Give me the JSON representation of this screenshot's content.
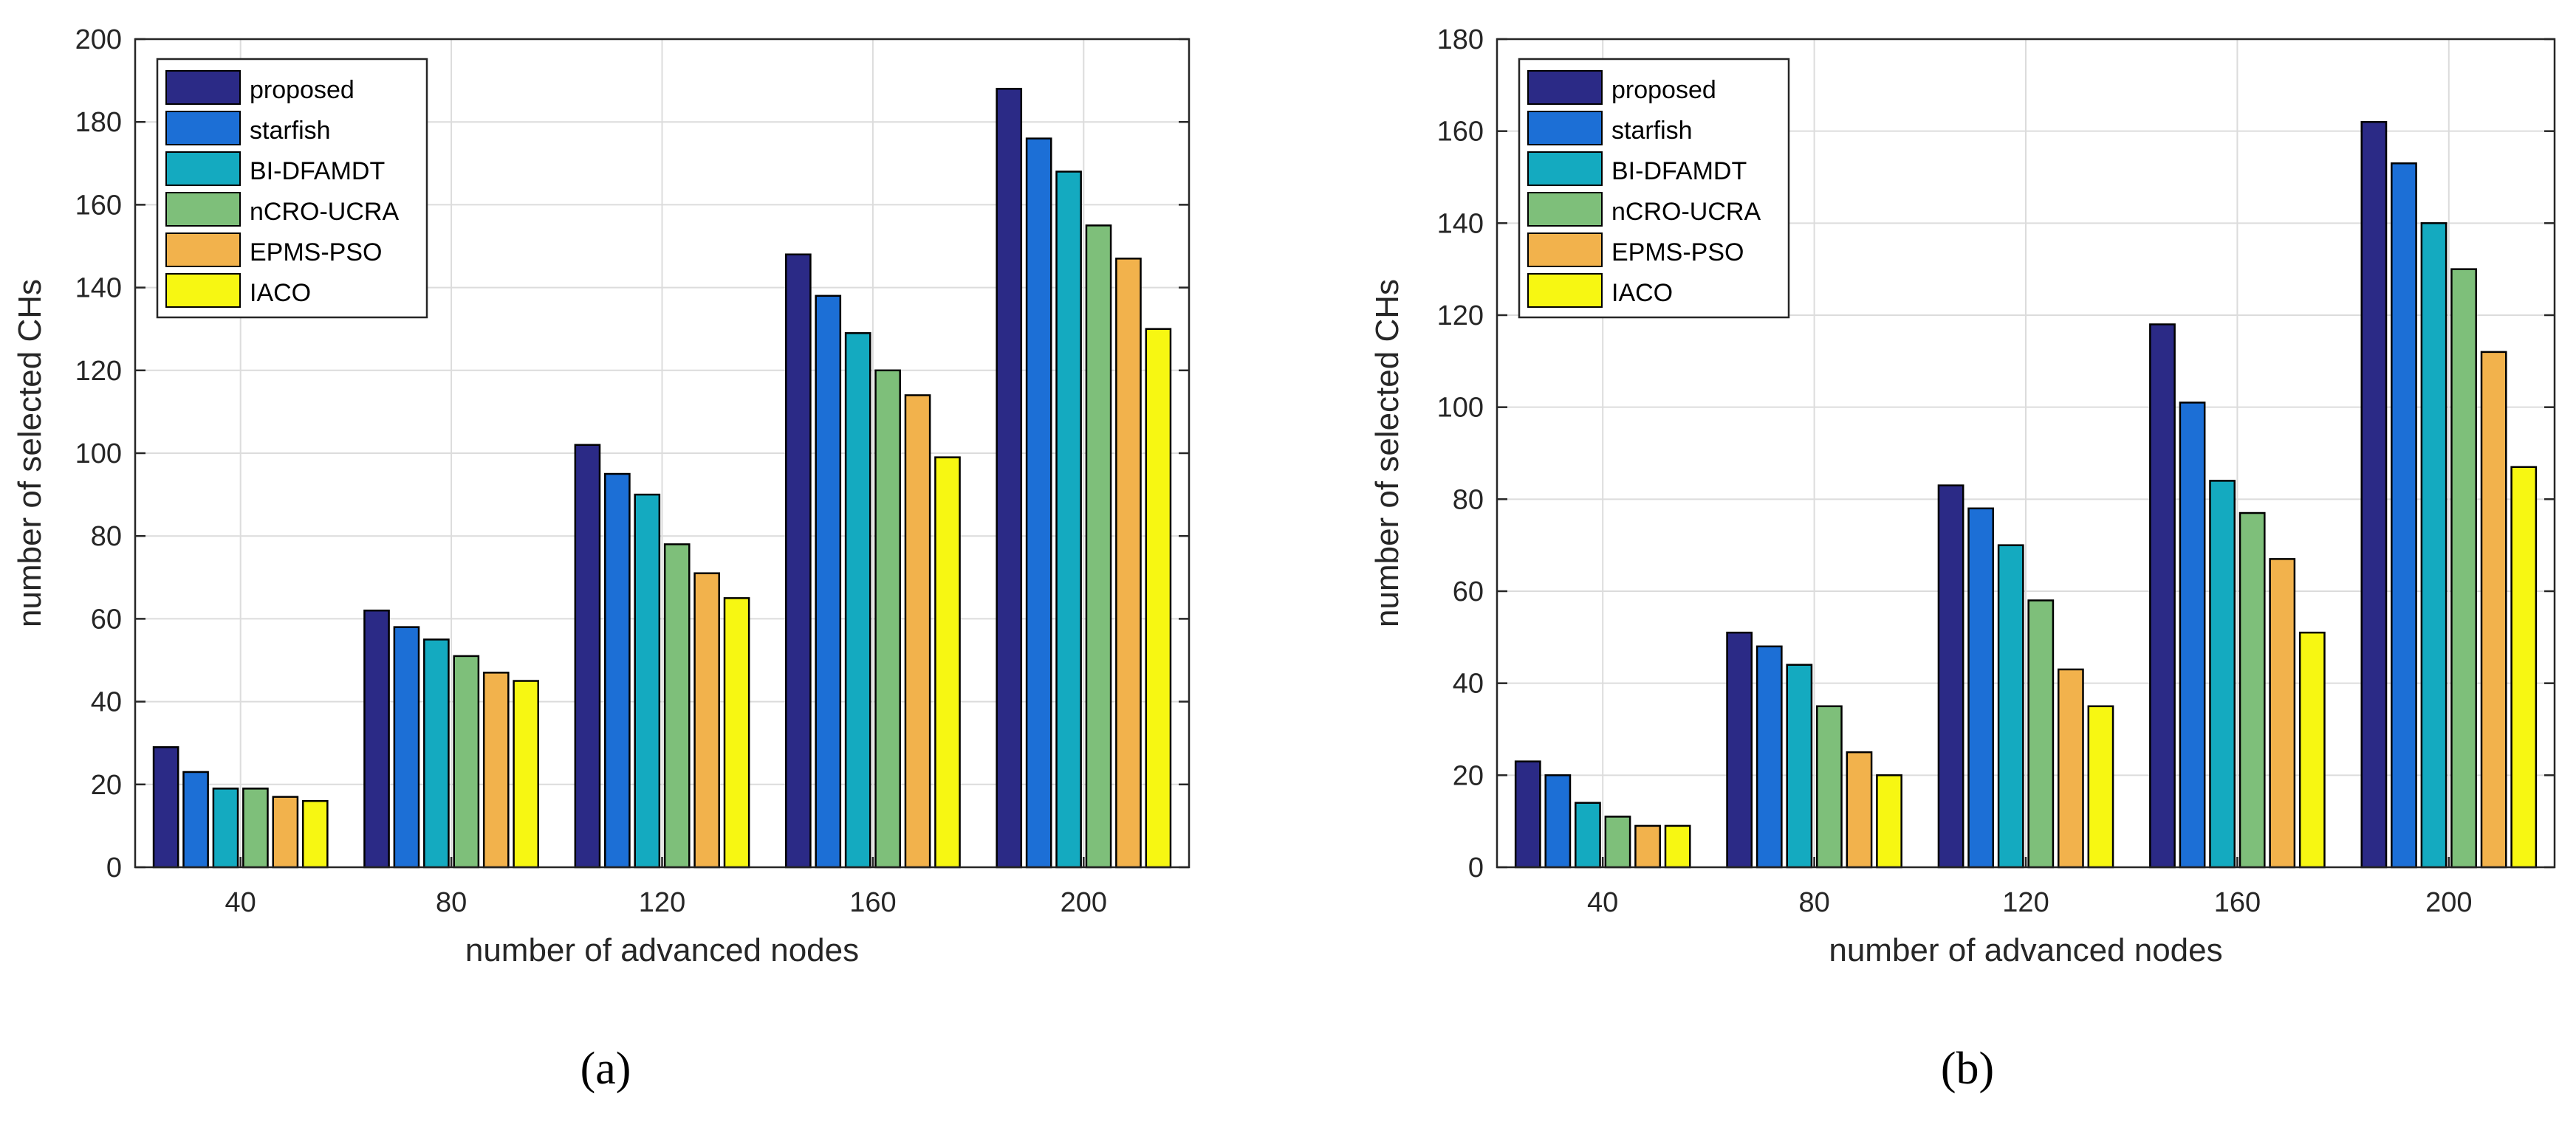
{
  "colors": {
    "proposed": "#2b2a86",
    "starfish": "#1c6fd6",
    "BI-DFAMDT": "#14aac0",
    "nCRO-UCRA": "#7ebf7a",
    "EPMS-PSO": "#f2b24c",
    "IACO": "#f7f712"
  },
  "chart_data": [
    {
      "type": "bar",
      "panel": "(a)",
      "caption": "(a)",
      "categories": [
        "40",
        "80",
        "120",
        "160",
        "200"
      ],
      "series": [
        {
          "name": "proposed",
          "values": [
            29,
            62,
            102,
            148,
            188
          ]
        },
        {
          "name": "starfish",
          "values": [
            23,
            58,
            95,
            138,
            176
          ]
        },
        {
          "name": "BI-DFAMDT",
          "values": [
            19,
            55,
            90,
            129,
            168
          ]
        },
        {
          "name": "nCRO-UCRA",
          "values": [
            19,
            51,
            78,
            120,
            155
          ]
        },
        {
          "name": "EPMS-PSO",
          "values": [
            17,
            47,
            71,
            114,
            147
          ]
        },
        {
          "name": "IACO",
          "values": [
            16,
            45,
            65,
            99,
            130
          ]
        }
      ],
      "xlabel": "number of advanced nodes",
      "ylabel": "number of selected CHs",
      "ylim": [
        0,
        200
      ],
      "yticks": [
        0,
        20,
        40,
        60,
        80,
        100,
        120,
        140,
        160,
        180,
        200
      ],
      "grid": true,
      "legend": "top-left"
    },
    {
      "type": "bar",
      "panel": "(b)",
      "caption": "(b)",
      "categories": [
        "40",
        "80",
        "120",
        "160",
        "200"
      ],
      "series": [
        {
          "name": "proposed",
          "values": [
            23,
            51,
            83,
            118,
            162
          ]
        },
        {
          "name": "starfish",
          "values": [
            20,
            48,
            78,
            101,
            153
          ]
        },
        {
          "name": "BI-DFAMDT",
          "values": [
            14,
            44,
            70,
            84,
            140
          ]
        },
        {
          "name": "nCRO-UCRA",
          "values": [
            11,
            35,
            58,
            77,
            130
          ]
        },
        {
          "name": "EPMS-PSO",
          "values": [
            9,
            25,
            43,
            67,
            112
          ]
        },
        {
          "name": "IACO",
          "values": [
            9,
            20,
            35,
            51,
            87
          ]
        }
      ],
      "xlabel": "number of advanced nodes",
      "ylabel": "number of selected CHs",
      "ylim": [
        0,
        180
      ],
      "yticks": [
        0,
        20,
        40,
        60,
        80,
        100,
        120,
        140,
        160,
        180
      ],
      "grid": true,
      "legend": "top-left"
    }
  ]
}
